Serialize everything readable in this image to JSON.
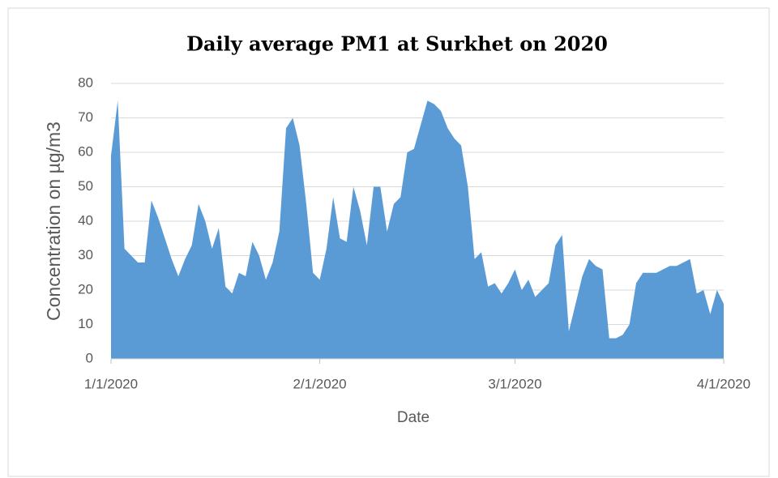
{
  "chart_data": {
    "type": "area",
    "title": "Daily average PM1 at Surkhet on 2020",
    "x_label": "Date",
    "y_label": "Concentration on µg/m3",
    "color": "#5b9bd5",
    "grid": true,
    "x": [
      "1/1/2020",
      "1/2/2020",
      "1/3/2020",
      "1/4/2020",
      "1/5/2020",
      "1/6/2020",
      "1/7/2020",
      "1/8/2020",
      "1/9/2020",
      "1/10/2020",
      "1/11/2020",
      "1/12/2020",
      "1/13/2020",
      "1/14/2020",
      "1/15/2020",
      "1/16/2020",
      "1/17/2020",
      "1/18/2020",
      "1/19/2020",
      "1/20/2020",
      "1/21/2020",
      "1/22/2020",
      "1/23/2020",
      "1/24/2020",
      "1/25/2020",
      "1/26/2020",
      "1/27/2020",
      "1/28/2020",
      "1/29/2020",
      "1/30/2020",
      "1/31/2020",
      "2/1/2020",
      "2/2/2020",
      "2/3/2020",
      "2/4/2020",
      "2/5/2020",
      "2/6/2020",
      "2/7/2020",
      "2/8/2020",
      "2/9/2020",
      "2/10/2020",
      "2/11/2020",
      "2/12/2020",
      "2/13/2020",
      "2/14/2020",
      "2/15/2020",
      "2/16/2020",
      "2/17/2020",
      "2/18/2020",
      "2/19/2020",
      "2/20/2020",
      "2/21/2020",
      "2/22/2020",
      "2/23/2020",
      "2/24/2020",
      "2/25/2020",
      "2/26/2020",
      "2/27/2020",
      "2/28/2020",
      "2/29/2020",
      "3/1/2020",
      "3/2/2020",
      "3/3/2020",
      "3/4/2020",
      "3/5/2020",
      "3/6/2020",
      "3/7/2020",
      "3/8/2020",
      "3/9/2020",
      "3/10/2020",
      "3/11/2020",
      "3/12/2020",
      "3/13/2020",
      "3/14/2020",
      "3/15/2020",
      "3/16/2020",
      "3/17/2020",
      "3/18/2020",
      "3/19/2020",
      "3/20/2020",
      "3/21/2020",
      "3/22/2020",
      "3/23/2020",
      "3/24/2020",
      "3/25/2020",
      "3/26/2020",
      "3/27/2020",
      "3/28/2020",
      "3/29/2020",
      "3/30/2020",
      "3/31/2020",
      "4/1/2020"
    ],
    "values": [
      59,
      75,
      32,
      30,
      28,
      28,
      46,
      41,
      35,
      29,
      24,
      29,
      33,
      45,
      40,
      32,
      38,
      21,
      19,
      25,
      24,
      34,
      30,
      23,
      28,
      37,
      67,
      70,
      62,
      45,
      25,
      23,
      32,
      47,
      35,
      34,
      50,
      43,
      33,
      50,
      50,
      37,
      45,
      47,
      60,
      61,
      68,
      75,
      74,
      72,
      67,
      64,
      62,
      50,
      29,
      31,
      21,
      22,
      19,
      22,
      26,
      20,
      23,
      18,
      20,
      22,
      33,
      36,
      8,
      16,
      24,
      29,
      27,
      26,
      6,
      6,
      7,
      10,
      22,
      25,
      25,
      25,
      26,
      27,
      27,
      28,
      29,
      19,
      20,
      13,
      20,
      16
    ],
    "xticks": [
      "1/1/2020",
      "2/1/2020",
      "3/1/2020",
      "4/1/2020"
    ],
    "ylim": [
      0,
      80
    ],
    "yticks": [
      0,
      10,
      20,
      30,
      40,
      50,
      60,
      70,
      80
    ]
  }
}
